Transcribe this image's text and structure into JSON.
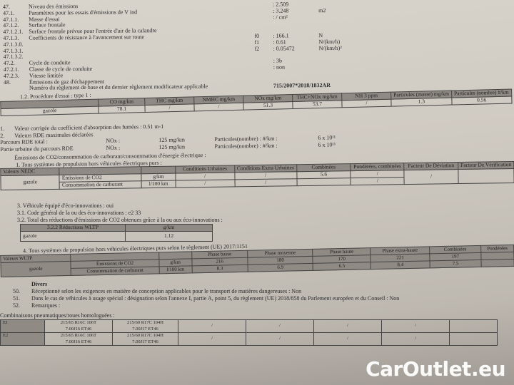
{
  "top_items": [
    {
      "num": "47.",
      "label": "Niveau des émissions",
      "value": ": 2.509",
      "unit": ""
    },
    {
      "num": "47.1.",
      "label": "Paramètres pour les essais d'émissions de V ind",
      "value": ": 3.248",
      "unit": "m2"
    },
    {
      "num": "47.1.1.",
      "label": "Masse d'essai",
      "value": ": / cm²",
      "unit": ""
    },
    {
      "num": "47.1.2.",
      "label": "Surface frontale",
      "value": "",
      "unit": ""
    },
    {
      "num": "47.1.2.1.",
      "label": "Surface frontale prévue pour l'entrée d'air de la calandre",
      "value": "",
      "unit": ""
    },
    {
      "num": "47.1.3.",
      "label": "Coefficients de résistance à l'avancement sur route",
      "key": "f0",
      "value": ": 166.1",
      "unit": "N"
    },
    {
      "num": "47.1.3.0.",
      "label": "",
      "key": "f1",
      "value": ": 0.61",
      "unit": "N/(km/h)"
    },
    {
      "num": "47.1.3.1.",
      "label": "",
      "key": "f2",
      "value": ": 0.05472",
      "unit": "N/(km/h)²"
    },
    {
      "num": "47.1.3.2.",
      "label": "",
      "value": "",
      "unit": ""
    },
    {
      "num": "47.2.",
      "label": "Cycle de conduite",
      "value": ": 3b",
      "unit": ""
    },
    {
      "num": "47.2.1.",
      "label": "Classe de cycle de conduite",
      "value": ": non",
      "unit": ""
    },
    {
      "num": "47.2.3.",
      "label": "Vitesse limitée",
      "value": "",
      "unit": ""
    },
    {
      "num": "48.",
      "label": "Émissions de gaz d'échappement",
      "value": "",
      "unit": ""
    }
  ],
  "regulation": {
    "label": "Numéro du règlement de base et du dernier règlement modificateur applicable",
    "value": "715/2007*2018/1832AR"
  },
  "type1": {
    "title": "1.2. Procédure d'essai : type 1 :",
    "headers": [
      "CO mg/km",
      "THC mg/km",
      "NMHC mg/km",
      "NOx mg/km",
      "THC+NOx mg/km",
      "NH 3 ppm",
      "Particules (masse) mg/km",
      "Particules (nombre) #/km"
    ],
    "fuel": "gazole",
    "values": [
      "78.1",
      "/",
      "/",
      "51.3",
      "53.7",
      "/",
      "1.3",
      "0.56"
    ]
  },
  "smoke": {
    "num": "1.",
    "text": "Valeur corrigée du coefficient d'absorption des fumées : 0.51 m-1"
  },
  "rde": {
    "num": "2.",
    "title": "Valeurs RDE maximales déclarées",
    "rows": [
      {
        "label": "Parcours RDE total :",
        "pollutant": "NOx :",
        "value": "125 mg/km",
        "pn_label": "Particules(nombre) : #/km :",
        "pn_value": "6 x 10¹¹"
      },
      {
        "label": "Partie urbaine du parcours RDE",
        "pollutant": "NOx :",
        "value": "125 mg/km",
        "pn_label": "Particules(nombre) : #/km :",
        "pn_value": "6 x 10¹¹"
      }
    ]
  },
  "co2": {
    "title": "Émissions de CO2/consommation de carburant/consommation d'énergie électrique :",
    "subtitle": "1. Tous systèmes de propulsion hors véhicules électriques purs :",
    "nedc_label": "Valeurs NEDC",
    "headers": [
      "Conditions Urbaines",
      "Conditions Extra Urbaines",
      "Combinées",
      "Pondérées, combinées",
      "Facteur De Déviation",
      "Facteur De Vérification"
    ],
    "fuel": "gazole",
    "rows": [
      {
        "label": "Émissions de CO2",
        "unit": "g/km",
        "values": [
          "/",
          "/",
          "5.6",
          "/"
        ]
      },
      {
        "label": "Consommation de carburant",
        "unit": "l/100 km",
        "values": [
          "/",
          "/",
          "",
          "/"
        ]
      }
    ],
    "extra": [
      "/",
      "/",
      "/",
      "/"
    ]
  },
  "eco": {
    "line1": "3. Véhicule équipé d'éco-innovations : oui",
    "line2": "3.1. Code général de la ou des éco-innovations : e2 33",
    "line3": "3.2. Total des réductions d'émissions de CO2 obtenues grâce à la ou aux éco-innovations :",
    "table_header": "3.2.2 Réductions WLTP",
    "table_unit": "g/km",
    "fuel": "gazole",
    "value": "1.12"
  },
  "wltp": {
    "title": "4. Tous systèmes de propulsion hors véhicules électriques purs selon le règlement (UE) 2017/1151",
    "label": "Valeurs WLTP",
    "fuel": "gazole",
    "headers": [
      "Phase basse",
      "Phase moyenne",
      "Phase haute",
      "Phase extra-haute",
      "Combinées",
      "Pondérées"
    ],
    "rows": [
      {
        "label": "Émissions de CO2",
        "unit": "g/km",
        "values": [
          "216",
          "180",
          "170",
          "221",
          "197",
          ""
        ]
      },
      {
        "label": "Consommation de carburant",
        "unit": "l/100 km",
        "values": [
          "8.3",
          "6.9",
          "6.5",
          "8.4",
          "7.5",
          ""
        ]
      }
    ]
  },
  "divers": {
    "title": "Divers",
    "items": [
      {
        "num": "50.",
        "text": "Réceptionné selon les exigences en matière de conception applicables pour le transport de matières dangereuses : Non"
      },
      {
        "num": "51.",
        "text": "Dans le cas de véhicules à usage spécial : désignation selon l'annexe I, partie A, point 5, du règlement (UE) 2018/858 du Parlement européen et du Conseil : Non"
      },
      {
        "num": "52.",
        "text": "Remarques :"
      }
    ]
  },
  "tyres": {
    "title": "Combinaisons pneumatiques/roues homologuées :",
    "rows": [
      {
        "axle": "E1",
        "a": "215/65 R16C 106T",
        "a2": "7.00J16 ET46",
        "b": "215/60 R17C 104H",
        "b2": "7.00J17 ET46"
      },
      {
        "axle": "E2",
        "a": "215/65 R16C 106T",
        "a2": "7.00J16 ET46",
        "b": "215/60 R17C 104H",
        "b2": "7.00J17 ET46"
      }
    ],
    "slash": "/"
  },
  "watermark": "CarOutlet.eu"
}
